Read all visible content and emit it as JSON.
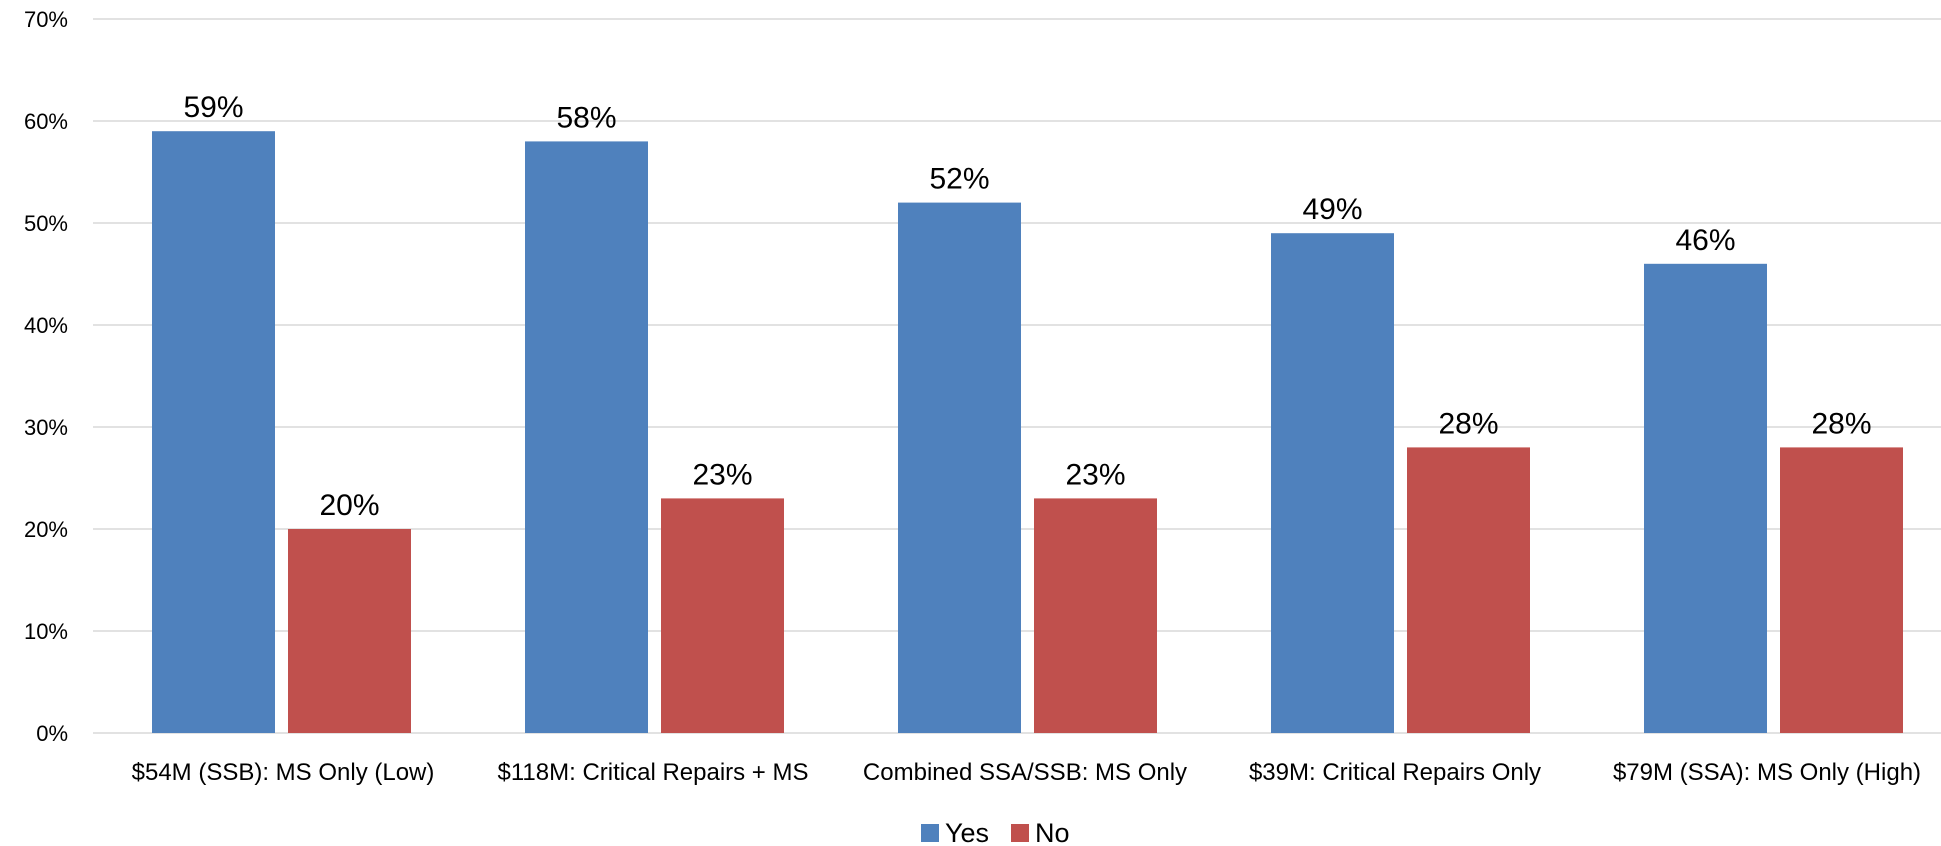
{
  "chart_data": {
    "type": "bar",
    "title": "",
    "xlabel": "",
    "ylabel": "",
    "ylim": [
      0,
      70
    ],
    "yticks": [
      "0%",
      "10%",
      "20%",
      "30%",
      "40%",
      "50%",
      "60%",
      "70%"
    ],
    "categories": [
      "$54M (SSB): MS Only (Low)",
      "$118M: Critical Repairs + MS",
      "Combined SSA/SSB: MS Only",
      "$39M: Critical Repairs Only",
      "$79M (SSA): MS Only (High)"
    ],
    "series": [
      {
        "name": "Yes",
        "color": "#4f81bd",
        "values": [
          59,
          58,
          52,
          49,
          46
        ],
        "labels": [
          "59%",
          "58%",
          "52%",
          "49%",
          "46%"
        ]
      },
      {
        "name": "No",
        "color": "#c0504d",
        "values": [
          20,
          23,
          23,
          28,
          28
        ],
        "labels": [
          "20%",
          "23%",
          "23%",
          "28%",
          "28%"
        ]
      }
    ],
    "grid": true,
    "legend_position": "bottom"
  }
}
